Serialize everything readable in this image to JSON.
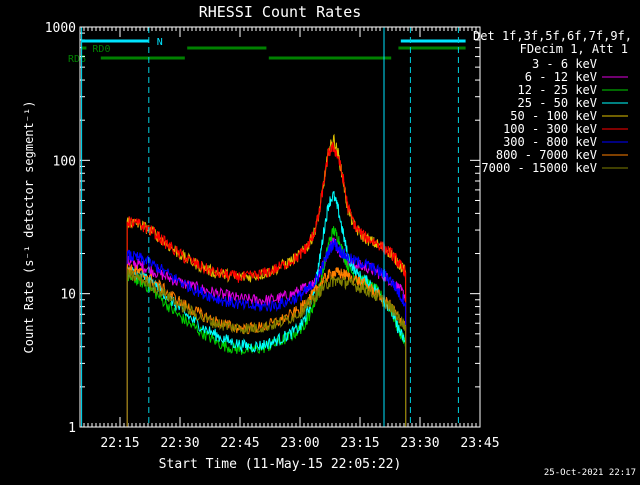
{
  "colors": {
    "background": "#000000",
    "axis": "#ffffff",
    "text": "#ffffff",
    "cyan_marker": "#00e5ff",
    "green_marker": "#008000",
    "dashed_marker": "#00d0e0"
  },
  "chart_data": {
    "type": "line",
    "title": "RHESSI Count Rates",
    "xlabel": "Start Time (11-May-15 22:05:22)",
    "ylabel": "Count Rate (s⁻¹ detector segment⁻¹)",
    "yscale": "log",
    "ylim": [
      1,
      1000
    ],
    "xlim": [
      22.0833,
      23.75
    ],
    "x_unit": "hours UT",
    "x_ticks": [
      {
        "value": 22.25,
        "label": "22:15"
      },
      {
        "value": 22.5,
        "label": "22:30"
      },
      {
        "value": 22.75,
        "label": "22:45"
      },
      {
        "value": 23.0,
        "label": "23:00"
      },
      {
        "value": 23.25,
        "label": "23:15"
      },
      {
        "value": 23.5,
        "label": "23:30"
      },
      {
        "value": 23.75,
        "label": "23:45"
      }
    ],
    "y_ticks": [
      {
        "value": 1,
        "label": "1"
      },
      {
        "value": 10,
        "label": "10"
      },
      {
        "value": 100,
        "label": "100"
      },
      {
        "value": 1000,
        "label": "1000"
      }
    ],
    "legend_header": [
      "Det 1f,3f,5f,6f,7f,9f,",
      "FDecim 1, Att 1"
    ],
    "legend_position": "right",
    "footer_timestamp": "25-Oct-2021 22:17",
    "x_samples": [
      22.28,
      22.3,
      22.33,
      22.36,
      22.4,
      22.44,
      22.48,
      22.52,
      22.56,
      22.6,
      22.64,
      22.68,
      22.72,
      22.76,
      22.8,
      22.84,
      22.88,
      22.92,
      22.96,
      23.0,
      23.02,
      23.04,
      23.06,
      23.08,
      23.1,
      23.12,
      23.14,
      23.16,
      23.18,
      23.2,
      23.23,
      23.26,
      23.29,
      23.32,
      23.35,
      23.38,
      23.4,
      23.42,
      23.44
    ],
    "series": [
      {
        "name": "3 - 6 keV",
        "color": "#000000",
        "values": [
          17,
          16.5,
          16,
          15,
          14,
          13,
          12,
          11.5,
          11,
          10.5,
          10,
          9.6,
          9.3,
          9.0,
          8.8,
          8.7,
          8.8,
          9.0,
          9.5,
          10,
          10.5,
          11,
          12,
          13.5,
          14.5,
          15.5,
          16,
          16.2,
          16.5,
          17,
          16.5,
          16,
          15.5,
          14.5,
          13.5,
          12.5,
          11.5,
          11,
          10.5
        ]
      },
      {
        "name": "6 - 12 keV",
        "color": "#e000e0",
        "values": [
          17.5,
          17,
          16.5,
          15.5,
          14.5,
          13.5,
          12.5,
          11.8,
          11.2,
          10.7,
          10.2,
          9.8,
          9.4,
          9.1,
          9.0,
          8.9,
          9.0,
          9.3,
          9.8,
          10.5,
          11,
          11.5,
          12.5,
          14,
          17,
          22,
          25,
          22,
          19,
          17.5,
          16.5,
          16,
          15.5,
          14.5,
          13.5,
          12.5,
          11.5,
          10.5,
          9.5
        ]
      },
      {
        "name": "12 - 25 keV",
        "color": "#00d000",
        "values": [
          13.5,
          13,
          12.5,
          11.5,
          10,
          8.5,
          7.2,
          6.3,
          5.6,
          5.0,
          4.5,
          4.1,
          3.9,
          3.8,
          3.8,
          3.9,
          4.1,
          4.4,
          4.8,
          5.4,
          6,
          7,
          8.5,
          11,
          16,
          24,
          30,
          26,
          20,
          16,
          13.5,
          12.5,
          11.5,
          10.5,
          9,
          7.5,
          6,
          5,
          4.2
        ]
      },
      {
        "name": "25 - 50 keV",
        "color": "#00ffff",
        "values": [
          15,
          14.5,
          14,
          13,
          11.5,
          9.8,
          8.3,
          7.1,
          6.2,
          5.5,
          5.0,
          4.6,
          4.3,
          4.1,
          4.0,
          4.1,
          4.3,
          4.6,
          5.0,
          5.6,
          6.5,
          8,
          11,
          17,
          30,
          48,
          55,
          42,
          28,
          19,
          14.5,
          13,
          12,
          10.5,
          9,
          7.5,
          6,
          5,
          4.3
        ]
      },
      {
        "name": "50 - 100 keV",
        "color": "#e0c000",
        "values": [
          35,
          34,
          33,
          31,
          28,
          24,
          21,
          18.5,
          17,
          15.5,
          14.5,
          14,
          13.5,
          13.3,
          13.5,
          14,
          14.8,
          16,
          17.5,
          19.5,
          21.5,
          24,
          29,
          40,
          70,
          120,
          145,
          110,
          70,
          42,
          31,
          27,
          25,
          23.5,
          22,
          20,
          18,
          16,
          14.5
        ]
      },
      {
        "name": "100 - 300 keV",
        "color": "#ff0000",
        "values": [
          35,
          34,
          33,
          31,
          28,
          24,
          21,
          18.5,
          17,
          15.5,
          14.5,
          14,
          13.5,
          13.3,
          13.5,
          14,
          14.8,
          16,
          17.5,
          19.5,
          21.5,
          24,
          29,
          40,
          70,
          115,
          125,
          105,
          72,
          44,
          32,
          27.5,
          25.5,
          24,
          22,
          20,
          18,
          16,
          14.5
        ]
      },
      {
        "name": "300 - 800 keV",
        "color": "#0000ff",
        "values": [
          19.5,
          19,
          18.5,
          17.5,
          16,
          14.5,
          13,
          11.8,
          10.8,
          10,
          9.4,
          8.9,
          8.5,
          8.2,
          8.0,
          8.0,
          8.1,
          8.4,
          8.9,
          9.6,
          10.3,
          11,
          12,
          14,
          17,
          21,
          24,
          22,
          20,
          18.5,
          17.5,
          17,
          16,
          15,
          14,
          12.5,
          11,
          9.5,
          8.5
        ]
      },
      {
        "name": "800 - 7000 keV",
        "color": "#ff8000",
        "values": [
          15.5,
          15,
          14.5,
          13.5,
          12,
          10.5,
          9.2,
          8.2,
          7.4,
          6.8,
          6.3,
          5.9,
          5.6,
          5.5,
          5.5,
          5.6,
          5.9,
          6.3,
          6.9,
          7.6,
          8.4,
          9.2,
          10.2,
          11.5,
          12.8,
          13.8,
          14.3,
          14.3,
          14,
          13.5,
          12.8,
          12,
          11,
          10,
          9,
          8,
          7,
          6.3,
          5.6
        ]
      },
      {
        "name": "7000 - 15000 keV",
        "color": "#808000",
        "values": [
          14,
          13.5,
          13,
          12.2,
          11,
          9.8,
          8.7,
          7.8,
          7.1,
          6.5,
          6.1,
          5.8,
          5.6,
          5.5,
          5.5,
          5.6,
          5.8,
          6.1,
          6.6,
          7.2,
          7.8,
          8.5,
          9.3,
          10.3,
          11.3,
          12,
          12.5,
          12.5,
          12.3,
          12,
          11.5,
          11,
          10.3,
          9.5,
          8.7,
          7.8,
          7,
          6.3,
          5.7
        ]
      }
    ],
    "data_gaps": [
      {
        "from": 22.0833,
        "to": 22.278
      },
      {
        "from": 23.446,
        "to": 23.75
      }
    ],
    "attenuator_bars": [
      {
        "label": "N",
        "row": "top",
        "color": "#00e5ff",
        "segments": [
          [
            22.09,
            22.37
          ],
          [
            23.42,
            23.69
          ]
        ]
      },
      {
        "label": "RD0",
        "row": "middle",
        "color": "#008000",
        "segments": [
          [
            22.09,
            22.11
          ],
          [
            22.53,
            22.86
          ],
          [
            23.41,
            23.69
          ]
        ]
      },
      {
        "label": "RD6",
        "row": "bottom",
        "color": "#008000",
        "segments": [
          [
            22.17,
            22.52
          ],
          [
            22.87,
            23.38
          ]
        ]
      }
    ],
    "solid_vlines": [
      22.09,
      23.35
    ],
    "dashed_vlines": [
      22.37,
      23.46,
      23.66
    ]
  }
}
